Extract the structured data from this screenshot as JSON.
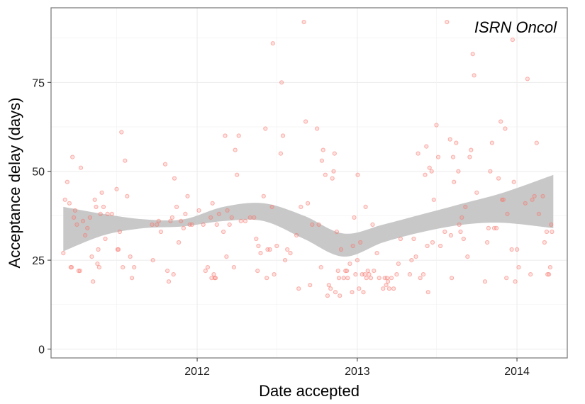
{
  "chart_data": {
    "type": "scatter",
    "title": "",
    "panel_label": "ISRN Oncol",
    "xlabel": "Date accepted",
    "ylabel": "Acceptance delay (days)",
    "x_ticks": [
      "2012",
      "2013",
      "2014"
    ],
    "y_ticks": [
      0,
      25,
      50,
      75
    ],
    "xlim": [
      "2011-02-01",
      "2014-04-26"
    ],
    "ylim": [
      -2.5,
      96
    ],
    "grid": true,
    "point_color": "#f8766d",
    "band_color": "#c8c8c8",
    "smooth": {
      "x": [
        "2011-03-01",
        "2011-06-01",
        "2011-09-01",
        "2011-12-01",
        "2012-03-01",
        "2012-06-01",
        "2012-09-01",
        "2012-12-01",
        "2013-03-01",
        "2013-06-01",
        "2013-09-01",
        "2013-12-01",
        "2014-03-25"
      ],
      "lower": [
        27.5,
        32,
        34,
        34.5,
        36,
        36,
        31,
        26,
        30,
        33,
        35,
        35.5,
        34
      ],
      "upper": [
        40,
        38,
        36.5,
        36.5,
        40,
        41,
        37.5,
        32.5,
        35,
        38,
        41,
        44,
        49
      ]
    },
    "points": [
      [
        "2011-03-01",
        27
      ],
      [
        "2011-03-05",
        42
      ],
      [
        "2011-03-10",
        47
      ],
      [
        "2011-03-15",
        41
      ],
      [
        "2011-03-18",
        23
      ],
      [
        "2011-03-20",
        23
      ],
      [
        "2011-03-22",
        54
      ],
      [
        "2011-03-25",
        37
      ],
      [
        "2011-03-28",
        39
      ],
      [
        "2011-04-01",
        35
      ],
      [
        "2011-04-05",
        22
      ],
      [
        "2011-04-08",
        22
      ],
      [
        "2011-04-10",
        51
      ],
      [
        "2011-04-15",
        36
      ],
      [
        "2011-04-20",
        32
      ],
      [
        "2011-04-25",
        34
      ],
      [
        "2011-05-01",
        37
      ],
      [
        "2011-05-05",
        26
      ],
      [
        "2011-05-08",
        19
      ],
      [
        "2011-05-12",
        42
      ],
      [
        "2011-05-15",
        40
      ],
      [
        "2011-05-18",
        24
      ],
      [
        "2011-05-20",
        28
      ],
      [
        "2011-05-22",
        23
      ],
      [
        "2011-05-25",
        38
      ],
      [
        "2011-05-28",
        44
      ],
      [
        "2011-06-01",
        40
      ],
      [
        "2011-06-05",
        31
      ],
      [
        "2011-06-10",
        38
      ],
      [
        "2011-06-20",
        38
      ],
      [
        "2011-07-01",
        45
      ],
      [
        "2011-07-03",
        28
      ],
      [
        "2011-07-05",
        28
      ],
      [
        "2011-07-08",
        33
      ],
      [
        "2011-07-12",
        61
      ],
      [
        "2011-07-15",
        23
      ],
      [
        "2011-07-20",
        53
      ],
      [
        "2011-07-25",
        43
      ],
      [
        "2011-08-01",
        26
      ],
      [
        "2011-08-05",
        20
      ],
      [
        "2011-08-10",
        23
      ],
      [
        "2011-09-20",
        35
      ],
      [
        "2011-09-22",
        25
      ],
      [
        "2011-10-01",
        35
      ],
      [
        "2011-10-05",
        36
      ],
      [
        "2011-10-10",
        33
      ],
      [
        "2011-10-20",
        52
      ],
      [
        "2011-10-25",
        22
      ],
      [
        "2011-10-28",
        19
      ],
      [
        "2011-11-01",
        36
      ],
      [
        "2011-11-05",
        37
      ],
      [
        "2011-11-08",
        21
      ],
      [
        "2011-11-10",
        48
      ],
      [
        "2011-11-15",
        40
      ],
      [
        "2011-11-20",
        30
      ],
      [
        "2011-11-25",
        36
      ],
      [
        "2011-12-01",
        34
      ],
      [
        "2011-12-05",
        38
      ],
      [
        "2011-12-10",
        43
      ],
      [
        "2011-12-15",
        35
      ],
      [
        "2011-12-20",
        35
      ],
      [
        "2012-01-05",
        39
      ],
      [
        "2012-01-15",
        35
      ],
      [
        "2012-01-20",
        22
      ],
      [
        "2012-01-25",
        23
      ],
      [
        "2012-02-01",
        37
      ],
      [
        "2012-02-03",
        20
      ],
      [
        "2012-02-05",
        41
      ],
      [
        "2012-02-08",
        21
      ],
      [
        "2012-02-10",
        20
      ],
      [
        "2012-02-12",
        20
      ],
      [
        "2012-02-15",
        35
      ],
      [
        "2012-02-20",
        38
      ],
      [
        "2012-03-01",
        33
      ],
      [
        "2012-03-05",
        60
      ],
      [
        "2012-03-08",
        26
      ],
      [
        "2012-03-10",
        39
      ],
      [
        "2012-03-15",
        35
      ],
      [
        "2012-03-20",
        37
      ],
      [
        "2012-03-25",
        23
      ],
      [
        "2012-03-28",
        56
      ],
      [
        "2012-04-01",
        49
      ],
      [
        "2012-04-05",
        60
      ],
      [
        "2012-04-10",
        36
      ],
      [
        "2012-04-20",
        36
      ],
      [
        "2012-05-01",
        37
      ],
      [
        "2012-05-10",
        37
      ],
      [
        "2012-05-15",
        31
      ],
      [
        "2012-05-18",
        22
      ],
      [
        "2012-05-20",
        29
      ],
      [
        "2012-05-25",
        27
      ],
      [
        "2012-06-01",
        43
      ],
      [
        "2012-06-05",
        62
      ],
      [
        "2012-06-08",
        20
      ],
      [
        "2012-06-10",
        28
      ],
      [
        "2012-06-15",
        28
      ],
      [
        "2012-06-20",
        40
      ],
      [
        "2012-06-22",
        86
      ],
      [
        "2012-06-25",
        21
      ],
      [
        "2012-07-01",
        29
      ],
      [
        "2012-07-10",
        55
      ],
      [
        "2012-07-12",
        75
      ],
      [
        "2012-07-15",
        60
      ],
      [
        "2012-07-20",
        25
      ],
      [
        "2012-07-25",
        28
      ],
      [
        "2012-08-01",
        27
      ],
      [
        "2012-08-15",
        32
      ],
      [
        "2012-08-20",
        17
      ],
      [
        "2012-08-25",
        40
      ],
      [
        "2012-09-01",
        92
      ],
      [
        "2012-09-05",
        64
      ],
      [
        "2012-09-10",
        41
      ],
      [
        "2012-09-15",
        18
      ],
      [
        "2012-09-20",
        35
      ],
      [
        "2012-10-01",
        62
      ],
      [
        "2012-10-05",
        35
      ],
      [
        "2012-10-10",
        23
      ],
      [
        "2012-10-12",
        53
      ],
      [
        "2012-10-15",
        56
      ],
      [
        "2012-10-20",
        49
      ],
      [
        "2012-10-25",
        15
      ],
      [
        "2012-10-28",
        18
      ],
      [
        "2012-11-01",
        17
      ],
      [
        "2012-11-05",
        48
      ],
      [
        "2012-11-08",
        50
      ],
      [
        "2012-11-10",
        55
      ],
      [
        "2012-11-12",
        16
      ],
      [
        "2012-11-15",
        33
      ],
      [
        "2012-11-18",
        22
      ],
      [
        "2012-11-20",
        20
      ],
      [
        "2012-11-22",
        15
      ],
      [
        "2012-11-25",
        28
      ],
      [
        "2012-12-01",
        20
      ],
      [
        "2012-12-05",
        22
      ],
      [
        "2012-12-08",
        22
      ],
      [
        "2012-12-10",
        20
      ],
      [
        "2012-12-15",
        24
      ],
      [
        "2012-12-20",
        16
      ],
      [
        "2012-12-22",
        29
      ],
      [
        "2012-12-25",
        37
      ],
      [
        "2012-12-28",
        21
      ],
      [
        "2013-01-01",
        25
      ],
      [
        "2013-01-02",
        49
      ],
      [
        "2013-01-05",
        17
      ],
      [
        "2013-01-08",
        30
      ],
      [
        "2013-01-12",
        21
      ],
      [
        "2013-01-15",
        16
      ],
      [
        "2013-01-18",
        21
      ],
      [
        "2013-01-20",
        40
      ],
      [
        "2013-01-22",
        20
      ],
      [
        "2013-01-25",
        22
      ],
      [
        "2013-01-28",
        21
      ],
      [
        "2013-02-01",
        20
      ],
      [
        "2013-02-05",
        35
      ],
      [
        "2013-02-08",
        22
      ],
      [
        "2013-02-15",
        27
      ],
      [
        "2013-02-20",
        20
      ],
      [
        "2013-03-01",
        17
      ],
      [
        "2013-03-05",
        20
      ],
      [
        "2013-03-08",
        18
      ],
      [
        "2013-03-10",
        20
      ],
      [
        "2013-03-12",
        19
      ],
      [
        "2013-03-15",
        17
      ],
      [
        "2013-03-20",
        20
      ],
      [
        "2013-03-25",
        17
      ],
      [
        "2013-04-01",
        21
      ],
      [
        "2013-04-05",
        24
      ],
      [
        "2013-04-10",
        31
      ],
      [
        "2013-05-01",
        21
      ],
      [
        "2013-05-05",
        25
      ],
      [
        "2013-05-10",
        31
      ],
      [
        "2013-05-15",
        26
      ],
      [
        "2013-05-20",
        55
      ],
      [
        "2013-05-25",
        20
      ],
      [
        "2013-06-01",
        21
      ],
      [
        "2013-06-05",
        49
      ],
      [
        "2013-06-08",
        57
      ],
      [
        "2013-06-10",
        29
      ],
      [
        "2013-06-12",
        16
      ],
      [
        "2013-06-15",
        51
      ],
      [
        "2013-06-20",
        50
      ],
      [
        "2013-06-22",
        30
      ],
      [
        "2013-06-25",
        42
      ],
      [
        "2013-07-01",
        63
      ],
      [
        "2013-07-05",
        54
      ],
      [
        "2013-07-10",
        29
      ],
      [
        "2013-07-20",
        33
      ],
      [
        "2013-07-25",
        92
      ],
      [
        "2013-08-01",
        59
      ],
      [
        "2013-08-03",
        32
      ],
      [
        "2013-08-05",
        20
      ],
      [
        "2013-08-08",
        54
      ],
      [
        "2013-08-10",
        47
      ],
      [
        "2013-08-15",
        58
      ],
      [
        "2013-08-20",
        50
      ],
      [
        "2013-08-22",
        35
      ],
      [
        "2013-08-25",
        33
      ],
      [
        "2013-08-28",
        37
      ],
      [
        "2013-09-01",
        31
      ],
      [
        "2013-09-05",
        40
      ],
      [
        "2013-09-10",
        26
      ],
      [
        "2013-09-15",
        54
      ],
      [
        "2013-09-18",
        56
      ],
      [
        "2013-09-22",
        83
      ],
      [
        "2013-09-25",
        77
      ],
      [
        "2013-10-01",
        44
      ],
      [
        "2013-10-20",
        19
      ],
      [
        "2013-10-25",
        30
      ],
      [
        "2013-10-28",
        34
      ],
      [
        "2013-11-01",
        50
      ],
      [
        "2013-11-05",
        58
      ],
      [
        "2013-11-10",
        34
      ],
      [
        "2013-11-15",
        34
      ],
      [
        "2013-11-20",
        48
      ],
      [
        "2013-11-25",
        64
      ],
      [
        "2013-11-28",
        42
      ],
      [
        "2013-12-01",
        42
      ],
      [
        "2013-12-05",
        62
      ],
      [
        "2013-12-08",
        20
      ],
      [
        "2013-12-10",
        38
      ],
      [
        "2013-12-20",
        28
      ],
      [
        "2013-12-22",
        87
      ],
      [
        "2013-12-25",
        47
      ],
      [
        "2013-12-28",
        19
      ],
      [
        "2014-01-01",
        28
      ],
      [
        "2014-01-05",
        23
      ],
      [
        "2014-01-20",
        41
      ],
      [
        "2014-01-25",
        76
      ],
      [
        "2014-02-01",
        21
      ],
      [
        "2014-02-05",
        42
      ],
      [
        "2014-02-10",
        43
      ],
      [
        "2014-02-15",
        58
      ],
      [
        "2014-02-20",
        38
      ],
      [
        "2014-03-01",
        43
      ],
      [
        "2014-03-05",
        30
      ],
      [
        "2014-03-10",
        33
      ],
      [
        "2014-03-12",
        21
      ],
      [
        "2014-03-15",
        21
      ],
      [
        "2014-03-18",
        23
      ],
      [
        "2014-03-20",
        35
      ],
      [
        "2014-03-22",
        33
      ]
    ]
  }
}
